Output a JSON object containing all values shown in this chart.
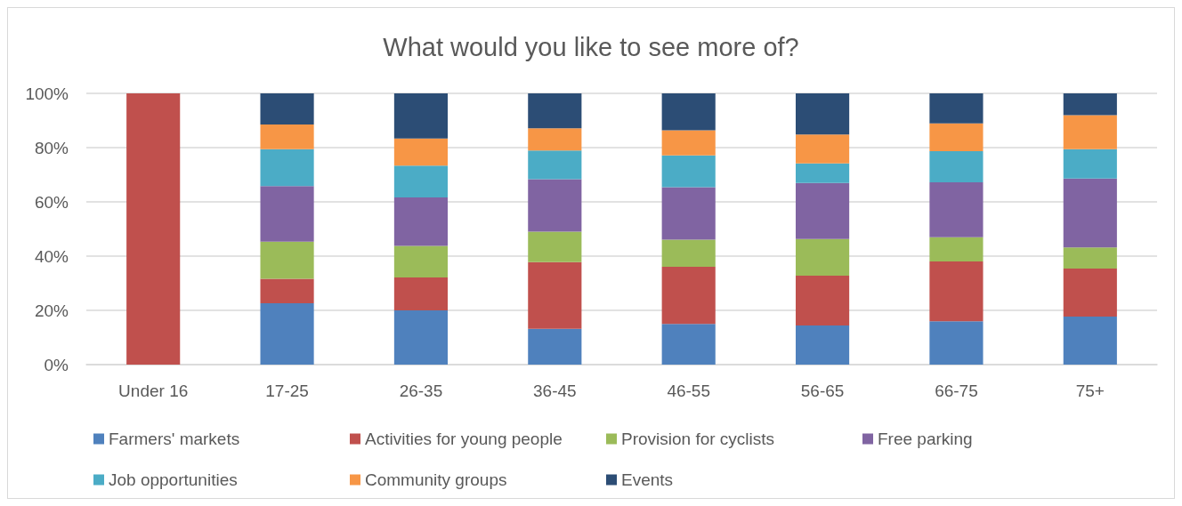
{
  "chart_data": {
    "type": "bar",
    "title": "What would you like to see more of?",
    "categories": [
      "Under 16",
      "17-25",
      "26-35",
      "36-45",
      "46-55",
      "56-65",
      "66-75",
      "75+"
    ],
    "series": [
      {
        "name": "Farmers' markets",
        "color": "#4f81bd",
        "values": [
          0,
          22.6,
          20.0,
          13.2,
          15.0,
          14.4,
          16.0,
          17.7
        ]
      },
      {
        "name": "Activities for young people",
        "color": "#c0504d",
        "values": [
          100,
          9.0,
          12.1,
          24.6,
          21.1,
          18.4,
          22.0,
          17.7
        ]
      },
      {
        "name": "Provision for cyclists",
        "color": "#9bbb59",
        "values": [
          0,
          13.7,
          11.7,
          11.2,
          10.0,
          13.5,
          9.0,
          7.8
        ]
      },
      {
        "name": "Free parking",
        "color": "#8064a2",
        "values": [
          0,
          20.5,
          17.8,
          19.4,
          19.3,
          20.7,
          20.2,
          25.4
        ]
      },
      {
        "name": "Job opportunities",
        "color": "#4bacc6",
        "values": [
          0,
          13.6,
          11.8,
          10.5,
          11.7,
          7.2,
          11.5,
          10.8
        ]
      },
      {
        "name": "Community groups",
        "color": "#f79646",
        "values": [
          0,
          9.1,
          10.0,
          8.2,
          9.3,
          10.6,
          10.2,
          12.6
        ]
      },
      {
        "name": "Events",
        "color": "#2c4d75",
        "values": [
          0,
          11.5,
          16.6,
          12.9,
          13.6,
          15.2,
          11.1,
          8.0
        ]
      }
    ],
    "stacked": true,
    "ylim": [
      0,
      100
    ],
    "yticks": [
      {
        "value": 0,
        "label": "0%"
      },
      {
        "value": 20,
        "label": "20%"
      },
      {
        "value": 40,
        "label": "40%"
      },
      {
        "value": 60,
        "label": "60%"
      },
      {
        "value": 80,
        "label": "80%"
      },
      {
        "value": 100,
        "label": "100%"
      }
    ],
    "grid": "y",
    "legend": "bottom"
  }
}
